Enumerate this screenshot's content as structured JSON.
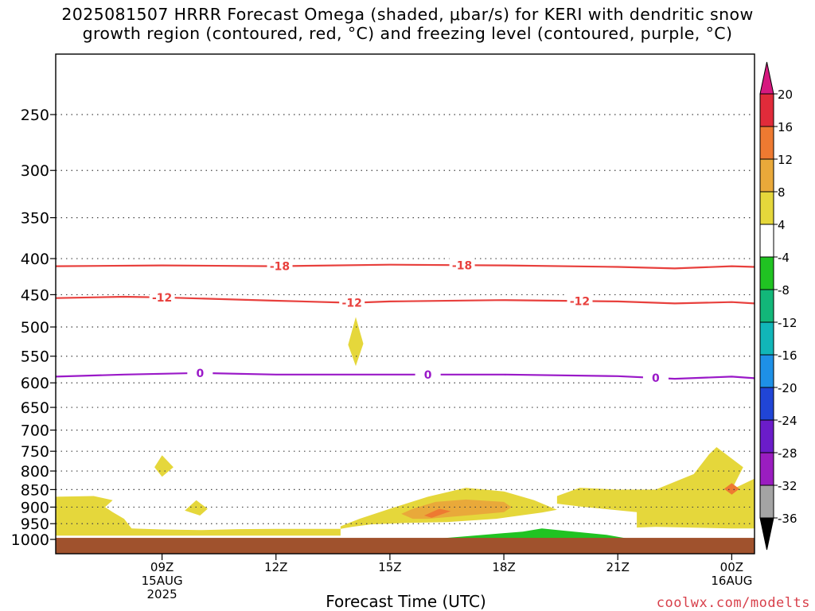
{
  "title": {
    "line1": "2025081507 HRRR Forecast Omega (shaded, μbar/s) for KERI with dendritic snow",
    "line2": "growth region (contoured, red, °C) and freezing level (contoured, purple, °C)"
  },
  "credit": "coolwx.com/modelts",
  "chart_data": {
    "type": "heatmap",
    "xlabel": "Forecast Time (UTC)",
    "ylabel": "",
    "x_range_hours": [
      6.2,
      24.6
    ],
    "y_log_pressure": true,
    "ylim_hpa": [
      1000,
      200
    ],
    "grid": true,
    "x_ticks": [
      {
        "hour": 9,
        "lines": [
          "09Z",
          "15AUG",
          "2025"
        ]
      },
      {
        "hour": 12,
        "lines": [
          "12Z"
        ]
      },
      {
        "hour": 15,
        "lines": [
          "15Z"
        ]
      },
      {
        "hour": 18,
        "lines": [
          "18Z"
        ]
      },
      {
        "hour": 21,
        "lines": [
          "21Z"
        ]
      },
      {
        "hour": 24,
        "lines": [
          "00Z",
          "16AUG"
        ]
      }
    ],
    "y_ticks": [
      250,
      300,
      350,
      400,
      450,
      500,
      550,
      600,
      650,
      700,
      750,
      800,
      850,
      900,
      950,
      1000
    ],
    "colorbar": {
      "levels": [
        20,
        16,
        12,
        8,
        4,
        -4,
        -8,
        -12,
        -16,
        -20,
        -24,
        -28,
        -32,
        -36
      ],
      "colors": [
        "#e02b3a",
        "#ee7a31",
        "#e9a93a",
        "#e5d73b",
        "#ffffff",
        "#20c322",
        "#12b779",
        "#11b6b8",
        "#1e90e6",
        "#2045d6",
        "#6b1cc9",
        "#9a1dc0",
        "#a4a4a4"
      ],
      "top_arrow_color": "#d6197f",
      "bottom_arrow_color": "#000000"
    },
    "contours": [
      {
        "kind": "dgz",
        "color": "#e8403d",
        "value": -18,
        "label": "-18",
        "points": [
          [
            6.2,
            410
          ],
          [
            9,
            409
          ],
          [
            12,
            410
          ],
          [
            15,
            408
          ],
          [
            18,
            409
          ],
          [
            21,
            411
          ],
          [
            22.5,
            413
          ],
          [
            24,
            410
          ],
          [
            24.6,
            411
          ]
        ],
        "label_hours": [
          12.1,
          16.9
        ]
      },
      {
        "kind": "dgz",
        "color": "#e8403d",
        "value": -12,
        "label": "-12",
        "points": [
          [
            6.2,
            455
          ],
          [
            8,
            453
          ],
          [
            9,
            454
          ],
          [
            12,
            459
          ],
          [
            14,
            462
          ],
          [
            15,
            460
          ],
          [
            18,
            458
          ],
          [
            21,
            460
          ],
          [
            22.5,
            463
          ],
          [
            24,
            461
          ],
          [
            24.6,
            463
          ]
        ],
        "label_hours": [
          9.0,
          14.0,
          20.0
        ]
      },
      {
        "kind": "freezing",
        "color": "#9a19c8",
        "value": 0,
        "label": "0",
        "points": [
          [
            6.2,
            588
          ],
          [
            8,
            584
          ],
          [
            10,
            581
          ],
          [
            12,
            584
          ],
          [
            15,
            584
          ],
          [
            18,
            584
          ],
          [
            21,
            587
          ],
          [
            22.5,
            592
          ],
          [
            24,
            588
          ],
          [
            24.6,
            591
          ]
        ],
        "label_hours": [
          10.0,
          16.0,
          22.0
        ]
      }
    ],
    "omega_areas": [
      {
        "level": 4,
        "color": "#e5d73b",
        "points": [
          [
            6.2,
            870
          ],
          [
            7.2,
            868
          ],
          [
            7.7,
            880
          ],
          [
            7.5,
            900
          ],
          [
            7.7,
            915
          ],
          [
            8,
            935
          ],
          [
            8.2,
            965
          ],
          [
            9,
            968
          ],
          [
            10,
            970
          ],
          [
            11,
            967
          ],
          [
            12,
            966
          ],
          [
            13.7,
            966
          ],
          [
            13.7,
            988
          ],
          [
            6.2,
            988
          ]
        ]
      },
      {
        "level": 4,
        "color": "#e5d73b",
        "points": [
          [
            13.7,
            958
          ],
          [
            14.2,
            935
          ],
          [
            15,
            905
          ],
          [
            16,
            870
          ],
          [
            17,
            845
          ],
          [
            18,
            855
          ],
          [
            18.8,
            880
          ],
          [
            19.4,
            908
          ],
          [
            19,
            916
          ],
          [
            17.8,
            935
          ],
          [
            16.5,
            945
          ],
          [
            15.4,
            948
          ],
          [
            14.5,
            952
          ],
          [
            14,
            960
          ],
          [
            13.7,
            966
          ]
        ]
      },
      {
        "level": 4,
        "color": "#e5d73b",
        "points": [
          [
            19.4,
            868
          ],
          [
            20,
            845
          ],
          [
            21,
            850
          ],
          [
            22,
            850
          ],
          [
            23,
            808
          ],
          [
            23.4,
            758
          ],
          [
            23.6,
            740
          ],
          [
            24.3,
            790
          ],
          [
            24,
            850
          ],
          [
            24.6,
            820
          ],
          [
            24.6,
            965
          ],
          [
            24,
            965
          ],
          [
            22,
            960
          ],
          [
            21.5,
            962
          ],
          [
            21.5,
            915
          ],
          [
            20,
            898
          ],
          [
            19.4,
            890
          ]
        ]
      },
      {
        "level": 8,
        "color": "#e9a93a",
        "points": [
          [
            15.3,
            920
          ],
          [
            15.6,
            905
          ],
          [
            16.2,
            885
          ],
          [
            17,
            878
          ],
          [
            18,
            885
          ],
          [
            18.2,
            900
          ],
          [
            18,
            915
          ],
          [
            17,
            925
          ],
          [
            16,
            935
          ],
          [
            15.6,
            935
          ]
        ]
      },
      {
        "level": 12,
        "color": "#ee7a31",
        "points": [
          [
            15.9,
            925
          ],
          [
            16.3,
            905
          ],
          [
            16.6,
            912
          ],
          [
            16.1,
            932
          ]
        ]
      },
      {
        "level": 12,
        "color": "#ee7a31",
        "points": [
          [
            23.8,
            848
          ],
          [
            24,
            832
          ],
          [
            24.2,
            848
          ],
          [
            24,
            864
          ]
        ]
      },
      {
        "level": 4,
        "color": "#e5d73b",
        "points": [
          [
            8.8,
            790
          ],
          [
            9.0,
            760
          ],
          [
            9.3,
            790
          ],
          [
            9.0,
            815
          ]
        ]
      },
      {
        "level": 4,
        "color": "#e5d73b",
        "points": [
          [
            9.6,
            910
          ],
          [
            9.9,
            880
          ],
          [
            10.2,
            905
          ],
          [
            10.0,
            925
          ]
        ]
      },
      {
        "level": 4,
        "color": "#e5d73b",
        "points": [
          [
            13.9,
            530
          ],
          [
            14.1,
            484
          ],
          [
            14.3,
            528
          ],
          [
            14.1,
            568
          ]
        ]
      },
      {
        "level": -4,
        "color": "#20c322",
        "points": [
          [
            16,
            1000
          ],
          [
            17,
            990
          ],
          [
            18.5,
            975
          ],
          [
            19,
            965
          ],
          [
            19.6,
            972
          ],
          [
            20.7,
            985
          ],
          [
            21.3,
            998
          ],
          [
            16,
            1000
          ]
        ]
      }
    ],
    "terrain": {
      "color": "#a0522d",
      "top_hpa": 995
    }
  }
}
